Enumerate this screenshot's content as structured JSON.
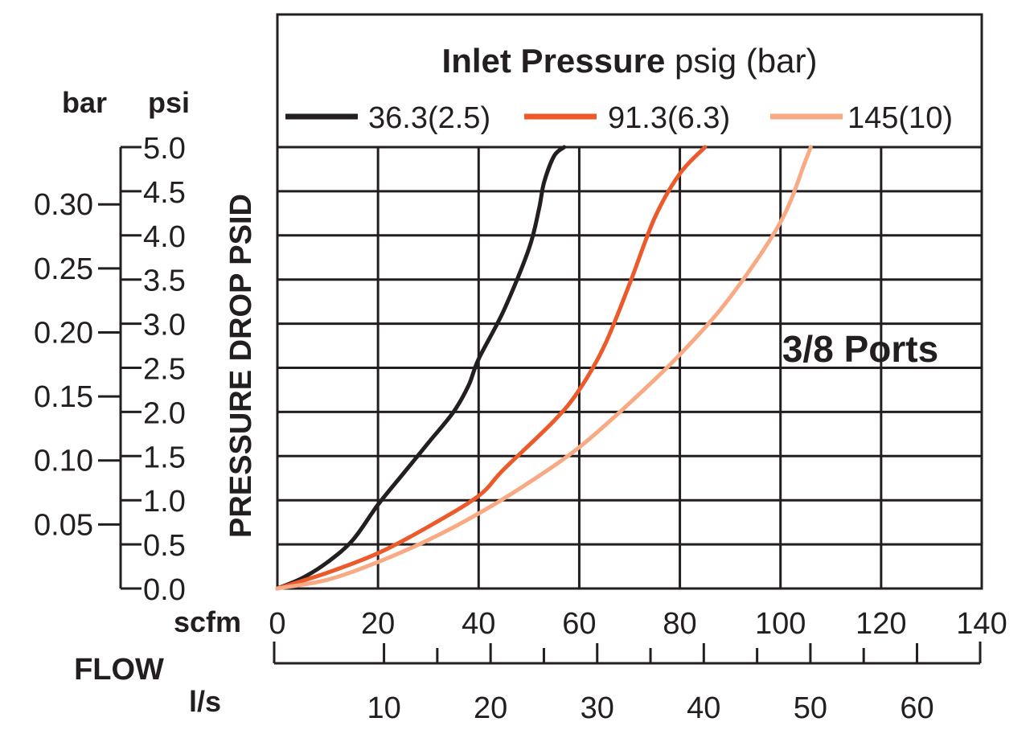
{
  "chart_data": {
    "type": "line",
    "title_bold": "Inlet Pressure",
    "title_rest": "psig (bar)",
    "annotation": "3/8 Ports",
    "xlabel_main": "FLOW",
    "x_primary_unit": "scfm",
    "x_secondary_unit": "l/s",
    "y_label": "PRESSURE DROP PSID",
    "y_primary_unit": "psi",
    "y_secondary_unit": "bar",
    "xlim": [
      0,
      140
    ],
    "ylim": [
      0,
      5.0
    ],
    "x_ticks": [
      "0",
      "20",
      "40",
      "60",
      "80",
      "100",
      "120",
      "140"
    ],
    "x_ticks_values": [
      0,
      20,
      40,
      60,
      80,
      100,
      120,
      140
    ],
    "x_secondary_ticks": [
      "10",
      "20",
      "30",
      "40",
      "50",
      "60"
    ],
    "x_secondary_ticks_values": [
      10,
      20,
      30,
      40,
      50,
      60
    ],
    "x_secondary_minor_values": [
      15,
      25,
      35,
      45,
      55
    ],
    "y_ticks": [
      "0.0",
      "0.5",
      "1.0",
      "1.5",
      "2.0",
      "2.5",
      "3.0",
      "3.5",
      "4.0",
      "4.5",
      "5.0"
    ],
    "y_ticks_values": [
      0,
      0.5,
      1.0,
      1.5,
      2.0,
      2.5,
      3.0,
      3.5,
      4.0,
      4.5,
      5.0
    ],
    "y_secondary_ticks": [
      "0.05",
      "0.10",
      "0.15",
      "0.20",
      "0.25",
      "0.30"
    ],
    "y_secondary_ticks_values": [
      0.05,
      0.1,
      0.15,
      0.2,
      0.25,
      0.3
    ],
    "series": [
      {
        "name": "36.3(2.5)",
        "color": "#231f20",
        "x": [
          0,
          5,
          10,
          15,
          20,
          25,
          30,
          35,
          38,
          40,
          45,
          50,
          52,
          53,
          55,
          57
        ],
        "y": [
          0,
          0.12,
          0.3,
          0.55,
          0.95,
          1.3,
          1.65,
          2.0,
          2.3,
          2.6,
          3.15,
          3.85,
          4.3,
          4.6,
          4.9,
          5.0
        ]
      },
      {
        "name": "91.3(6.3)",
        "color": "#ec5a2b",
        "x": [
          0,
          10,
          20,
          30,
          40,
          45,
          55,
          60,
          65,
          70,
          75,
          80,
          85
        ],
        "y": [
          0,
          0.18,
          0.4,
          0.7,
          1.05,
          1.35,
          1.9,
          2.25,
          2.75,
          3.45,
          4.2,
          4.7,
          5.0
        ]
      },
      {
        "name": "145(10)",
        "color": "#f7aa84",
        "x": [
          0,
          10,
          20,
          30,
          40,
          50,
          60,
          70,
          80,
          90,
          100,
          105,
          106
        ],
        "y": [
          0,
          0.1,
          0.3,
          0.55,
          0.85,
          1.2,
          1.6,
          2.1,
          2.65,
          3.3,
          4.15,
          4.85,
          5.0
        ]
      }
    ]
  }
}
